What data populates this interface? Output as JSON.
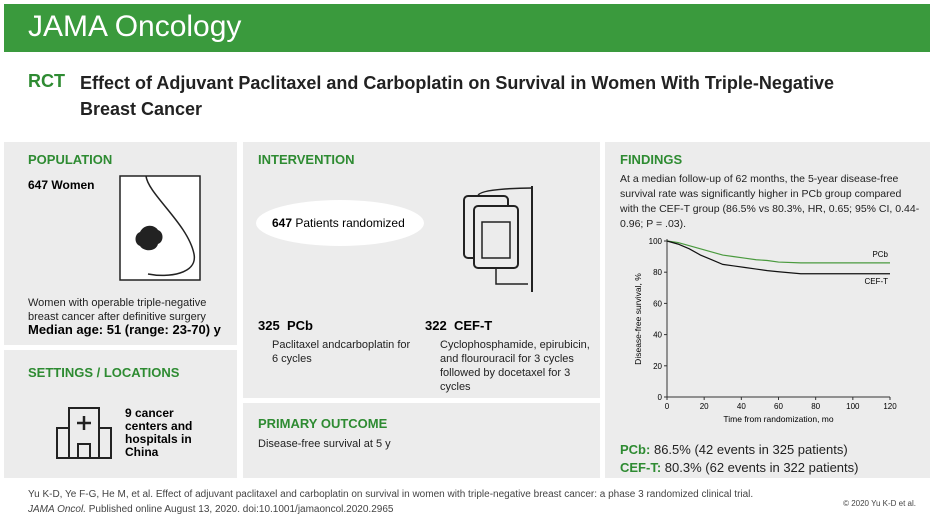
{
  "header": {
    "journal": "JAMA Oncology"
  },
  "title": {
    "tag": "RCT",
    "text": "Effect of Adjuvant Paclitaxel and Carboplatin on Survival in Women With Triple-Negative Breast Cancer"
  },
  "population": {
    "heading": "POPULATION",
    "count": 647,
    "count_label": "Women",
    "description": "Women with operable triple-negative breast cancer after definitive surgery",
    "median_age": "Median age: 51 (range: 23-70) y"
  },
  "settings": {
    "heading": "SETTINGS / LOCATIONS",
    "text": "9 cancer centers and hospitals in China"
  },
  "intervention": {
    "heading": "INTERVENTION",
    "randomized_count": 647,
    "randomized_label": "Patients randomized",
    "arms": [
      {
        "count": 325,
        "name": "PCb",
        "description": "Paclitaxel andcarboplatin for 6 cycles"
      },
      {
        "count": 322,
        "name": "CEF-T",
        "description": "Cyclophosphamide, epirubicin, and flourouracil for 3 cycles followed by docetaxel for 3 cycles"
      }
    ]
  },
  "primary_outcome": {
    "heading": "PRIMARY OUTCOME",
    "text": "Disease-free survival at 5 y"
  },
  "findings": {
    "heading": "FINDINGS",
    "text": "At a median follow-up of 62 months, the 5-year disease-free survival rate was significantly higher in PCb group compared with the CEF-T group (86.5% vs 80.3%, HR, 0.65; 95% CI, 0.44-0.96; P = .03).",
    "results": [
      {
        "name": "PCb:",
        "text": "86.5% (42 events in 325 patients)"
      },
      {
        "name": "CEF-T:",
        "text": "80.3% (62 events in 322 patients)"
      }
    ]
  },
  "chart_data": {
    "type": "line",
    "x_label": "Time from randomization, mo",
    "y_label": "Disease-free survival, %",
    "x": [
      0,
      6,
      12,
      18,
      24,
      30,
      36,
      42,
      48,
      54,
      60,
      72,
      84,
      96,
      120
    ],
    "series": [
      {
        "name": "PCb",
        "color": "#4a9a3e",
        "values": [
          100,
          99,
          97,
          95,
          93,
          91,
          90,
          89,
          88,
          87.5,
          86.5,
          86,
          86,
          86,
          86
        ]
      },
      {
        "name": "CEF-T",
        "color": "#111111",
        "values": [
          100,
          98,
          95,
          91,
          88,
          85,
          84,
          83,
          82,
          81,
          80.3,
          79,
          79,
          79,
          79
        ]
      }
    ],
    "xlim": [
      0,
      120
    ],
    "ylim": [
      0,
      100
    ],
    "xticks": [
      0,
      20,
      40,
      60,
      80,
      100,
      120
    ],
    "yticks": [
      0,
      20,
      40,
      60,
      80,
      100
    ],
    "grid": false
  },
  "footer": {
    "citation": "Yu K-D, Ye F-G, He M, et al. Effect of adjuvant paclitaxel and carboplatin on survival in women with triple-negative breast cancer: a phase 3 randomized clinical trial.",
    "journal": "JAMA Oncol.",
    "published": "Published online August 13, 2020. doi:10.1001/jamaoncol.2020.2965",
    "copyright": "© 2020 Yu K-D et al."
  }
}
